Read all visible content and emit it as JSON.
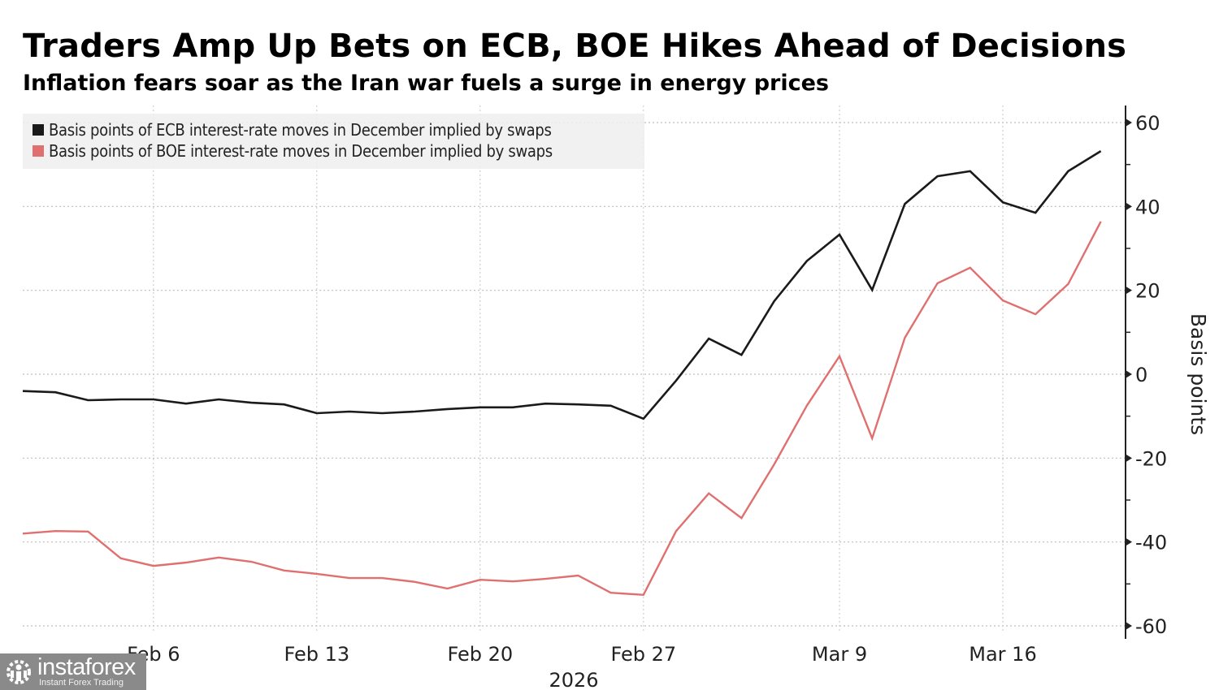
{
  "header": {
    "title": "Traders Amp Up Bets on ECB, BOE Hikes Ahead of Decisions",
    "subtitle": "Inflation fears soar as the Iran war fuels a surge in energy prices"
  },
  "watermark": {
    "brand": "instaforex",
    "tagline": "Instant Forex Trading"
  },
  "chart_data": {
    "type": "line",
    "title": "Traders Amp Up Bets on ECB, BOE Hikes Ahead of Decisions",
    "subtitle": "Inflation fears soar as the Iran war fuels a surge in energy prices",
    "xlabel": "2026",
    "ylabel": "Basis points",
    "ylim": [
      -60,
      60
    ],
    "y_ticks": [
      60,
      40,
      20,
      0,
      -20,
      -40,
      -60
    ],
    "y_tick_labels": [
      "60",
      "40",
      "20",
      "0",
      "-20",
      "-40",
      "-60"
    ],
    "y_axis_side": "right",
    "grid": true,
    "legend_position": "top-left",
    "x": [
      "Feb 2",
      "Feb 3",
      "Feb 4",
      "Feb 5",
      "Feb 6",
      "Feb 9",
      "Feb 10",
      "Feb 11",
      "Feb 12",
      "Feb 13",
      "Feb 16",
      "Feb 17",
      "Feb 18",
      "Feb 19",
      "Feb 20",
      "Feb 23",
      "Feb 24",
      "Feb 25",
      "Feb 26",
      "Feb 27",
      "Mar 2",
      "Mar 3",
      "Mar 4",
      "Mar 5",
      "Mar 6",
      "Mar 9",
      "Mar 10",
      "Mar 11",
      "Mar 12",
      "Mar 13",
      "Mar 16",
      "Mar 17",
      "Mar 18",
      "Mar 19"
    ],
    "x_ticks": [
      {
        "label": "Feb 6",
        "index": 4
      },
      {
        "label": "Feb 13",
        "index": 9
      },
      {
        "label": "Feb 20",
        "index": 14
      },
      {
        "label": "Feb 27",
        "index": 19
      },
      {
        "label": "Mar 9",
        "index": 25
      },
      {
        "label": "Mar 16",
        "index": 30
      }
    ],
    "series": [
      {
        "name": "Basis points of ECB interest-rate moves in December implied by swaps",
        "color": "#1a1a1a",
        "values": [
          -4,
          -4.3,
          -6.2,
          -6,
          -6,
          -7,
          -6,
          -6.8,
          -7.2,
          -9.3,
          -8.9,
          -9.3,
          -8.9,
          -8.3,
          -7.9,
          -7.9,
          -7,
          -7.2,
          -7.5,
          -10.6,
          -1.5,
          8.5,
          4.6,
          17.4,
          27,
          33.3,
          20.1,
          40.6,
          47.2,
          48.4,
          41,
          38.5,
          48.4,
          53.2
        ]
      },
      {
        "name": "Basis points of BOE interest-rate moves in December implied by swaps",
        "color": "#e07070",
        "values": [
          -38,
          -37.4,
          -37.5,
          -43.9,
          -45.7,
          -44.9,
          -43.7,
          -44.7,
          -46.8,
          -47.6,
          -48.6,
          -48.6,
          -49.5,
          -51.1,
          -49,
          -49.4,
          -48.8,
          -48,
          -52.1,
          -52.6,
          -37.4,
          -28.4,
          -34.3,
          -21.5,
          -7.5,
          4.3,
          -15.3,
          8.7,
          21.7,
          25.4,
          17.6,
          14.3,
          21.5,
          36.4
        ]
      }
    ]
  }
}
